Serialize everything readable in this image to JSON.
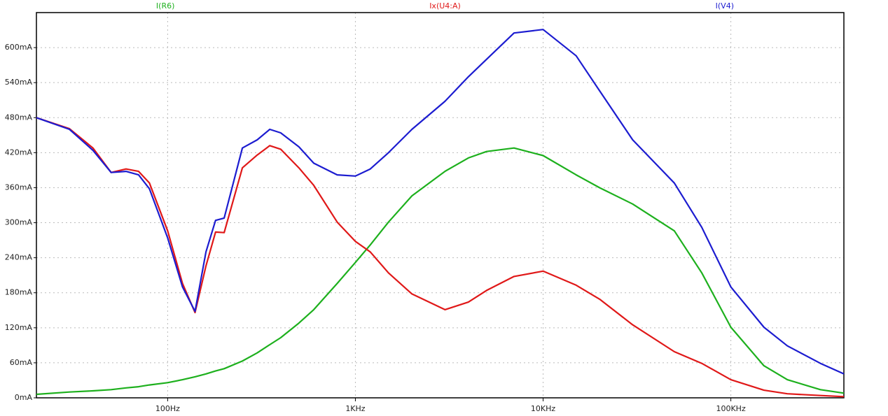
{
  "chart_data": {
    "type": "line",
    "log_x": true,
    "grid": true,
    "xlim": [
      20,
      400000
    ],
    "ylim": [
      0,
      660
    ],
    "xticks": [
      {
        "value": 100,
        "label": "100Hz"
      },
      {
        "value": 1000,
        "label": "1KHz"
      },
      {
        "value": 10000,
        "label": "10KHz"
      },
      {
        "value": 100000,
        "label": "100KHz"
      }
    ],
    "yticks": [
      {
        "value": 0,
        "label": "0mA"
      },
      {
        "value": 60,
        "label": "60mA"
      },
      {
        "value": 120,
        "label": "120mA"
      },
      {
        "value": 180,
        "label": "180mA"
      },
      {
        "value": 240,
        "label": "240mA"
      },
      {
        "value": 300,
        "label": "300mA"
      },
      {
        "value": 360,
        "label": "360mA"
      },
      {
        "value": 420,
        "label": "420mA"
      },
      {
        "value": 480,
        "label": "480mA"
      },
      {
        "value": 540,
        "label": "540mA"
      },
      {
        "value": 600,
        "label": "600mA"
      }
    ],
    "x": [
      20,
      30,
      40,
      50,
      60,
      70,
      80,
      100,
      120,
      140,
      160,
      180,
      200,
      250,
      300,
      350,
      400,
      500,
      600,
      800,
      1000,
      1200,
      1500,
      2000,
      3000,
      4000,
      5000,
      7000,
      10000,
      15000,
      20000,
      30000,
      50000,
      70000,
      100000,
      150000,
      200000,
      300000,
      400000
    ],
    "series": [
      {
        "name": "I(R6)",
        "color": "#1db01d",
        "values": [
          6,
          10,
          12,
          14,
          17,
          19,
          22,
          26,
          31,
          36,
          41,
          46,
          50,
          63,
          77,
          91,
          103,
          128,
          151,
          196,
          232,
          262,
          301,
          346,
          388,
          411,
          422,
          428,
          415,
          382,
          360,
          332,
          286,
          214,
          121,
          55,
          31,
          14,
          8
        ]
      },
      {
        "name": "Ix(U4:A)",
        "color": "#e01818",
        "values": [
          480,
          461,
          428,
          386,
          392,
          388,
          368,
          286,
          196,
          146,
          226,
          284,
          283,
          394,
          416,
          432,
          426,
          394,
          364,
          301,
          268,
          250,
          214,
          178,
          151,
          164,
          184,
          208,
          217,
          193,
          169,
          125,
          79,
          59,
          31,
          13,
          7,
          4,
          2
        ]
      },
      {
        "name": "I(V4)",
        "color": "#1c1cd0",
        "values": [
          480,
          460,
          424,
          386,
          388,
          382,
          358,
          274,
          190,
          148,
          250,
          304,
          308,
          428,
          442,
          460,
          454,
          430,
          402,
          382,
          380,
          392,
          420,
          460,
          508,
          550,
          580,
          625,
          631,
          586,
          526,
          442,
          368,
          292,
          190,
          121,
          89,
          59,
          41
        ]
      }
    ]
  }
}
